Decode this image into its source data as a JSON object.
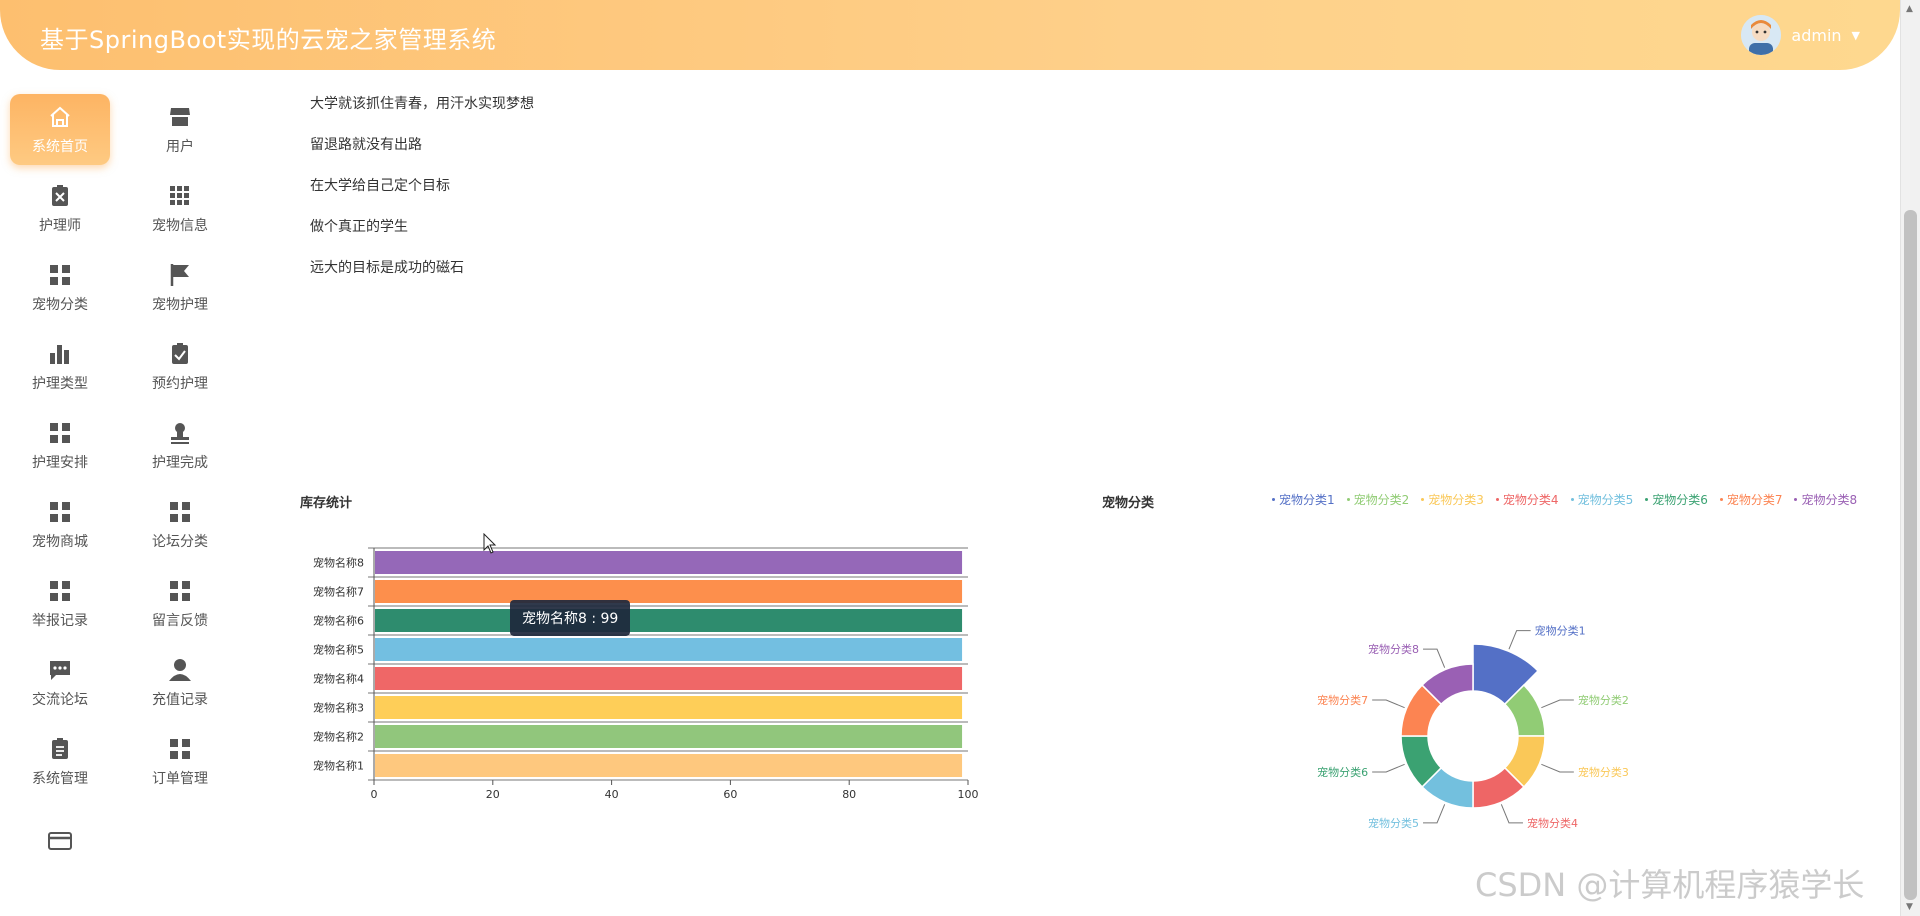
{
  "header": {
    "title": "基于SpringBoot实现的云宠之家管理系统",
    "user_name": "admin",
    "caret": "▼"
  },
  "sidebar": {
    "items": [
      {
        "label": "系统首页",
        "icon": "home-icon"
      },
      {
        "label": "用户",
        "icon": "store-icon"
      },
      {
        "label": "护理师",
        "icon": "clipboard-x-icon"
      },
      {
        "label": "宠物信息",
        "icon": "grid-9-icon"
      },
      {
        "label": "宠物分类",
        "icon": "grid-4-icon"
      },
      {
        "label": "宠物护理",
        "icon": "flag-icon"
      },
      {
        "label": "护理类型",
        "icon": "bar-chart-icon"
      },
      {
        "label": "预约护理",
        "icon": "clipboard-check-icon"
      },
      {
        "label": "护理安排",
        "icon": "grid-4-icon"
      },
      {
        "label": "护理完成",
        "icon": "stamp-icon"
      },
      {
        "label": "宠物商城",
        "icon": "grid-4-icon"
      },
      {
        "label": "论坛分类",
        "icon": "grid-4-icon"
      },
      {
        "label": "举报记录",
        "icon": "grid-4-icon"
      },
      {
        "label": "留言反馈",
        "icon": "grid-4-icon"
      },
      {
        "label": "交流论坛",
        "icon": "chat-icon"
      },
      {
        "label": "充值记录",
        "icon": "user-icon"
      },
      {
        "label": "系统管理",
        "icon": "clipboard-icon"
      },
      {
        "label": "订单管理",
        "icon": "grid-4-icon"
      },
      {
        "label": "",
        "icon": "card-icon"
      }
    ]
  },
  "mottos": [
    "大学就该抓住青春，用汗水实现梦想",
    "留退路就没有出路",
    "在大学给自己定个目标",
    "做个真正的学生",
    "远大的目标是成功的磁石"
  ],
  "tooltip": {
    "text": "宠物名称8 : 99"
  },
  "watermark": "CSDN @计算机程序猿学长",
  "colors": {
    "accent": "#fdb463",
    "series": [
      "#fec87e",
      "#91c67c",
      "#fece58",
      "#ef6767",
      "#73bfe1",
      "#2e8c6e",
      "#fd8f4c",
      "#9568b8"
    ],
    "pie": [
      "#5470c6",
      "#91cc75",
      "#fac858",
      "#ee6666",
      "#73c0de",
      "#3ba272",
      "#fc8452",
      "#9a60b4"
    ]
  },
  "chart_data": [
    {
      "type": "bar",
      "title": "库存统计",
      "orientation": "horizontal",
      "categories": [
        "宠物名称1",
        "宠物名称2",
        "宠物名称3",
        "宠物名称4",
        "宠物名称5",
        "宠物名称6",
        "宠物名称7",
        "宠物名称8"
      ],
      "values": [
        99,
        99,
        99,
        99,
        99,
        99,
        99,
        99
      ],
      "xlim": [
        0,
        100
      ],
      "xticks": [
        0,
        20,
        40,
        60,
        80,
        100
      ]
    },
    {
      "type": "pie",
      "title": "宠物分类",
      "style": "rose-donut",
      "categories": [
        "宠物分类1",
        "宠物分类2",
        "宠物分类3",
        "宠物分类4",
        "宠物分类5",
        "宠物分类6",
        "宠物分类7",
        "宠物分类8"
      ],
      "values": [
        1,
        1,
        1,
        1,
        1,
        1,
        1,
        1
      ],
      "highlighted": "宠物分类1",
      "legend": "top-right"
    }
  ]
}
